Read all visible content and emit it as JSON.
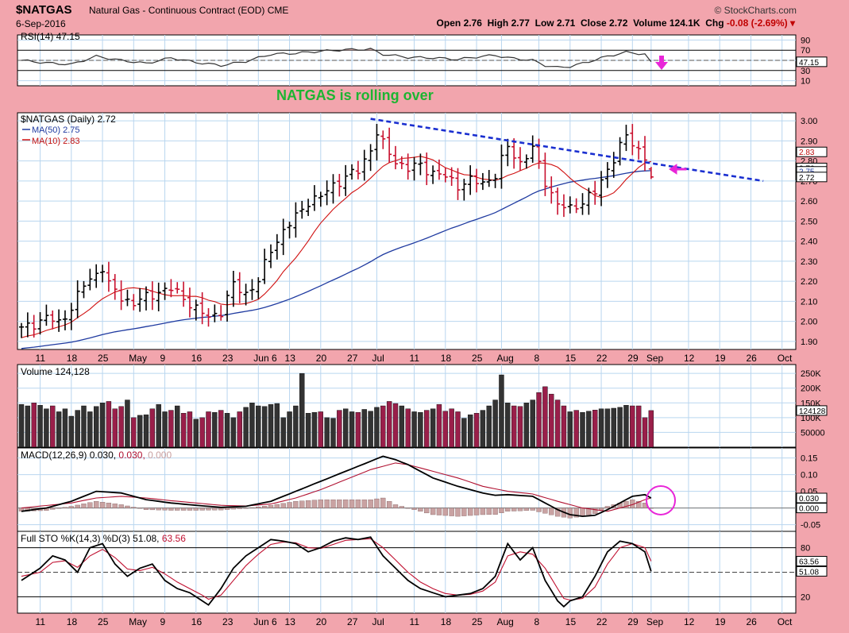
{
  "header": {
    "symbol": "$NATGAS",
    "description": "Natural Gas - Continuous Contract (EOD) CME",
    "date": "6-Sep-2016",
    "brand": "© StockCharts.com",
    "open_label": "Open",
    "open": "2.76",
    "high_label": "High",
    "high": "2.77",
    "low_label": "Low",
    "low": "2.71",
    "close_label": "Close",
    "close": "2.72",
    "volume_label": "Volume",
    "volume": "124.1K",
    "chg_label": "Chg",
    "chg": "-0.08 (-2.69%)"
  },
  "colors": {
    "background": "#f2a5ad",
    "panel": "#ffffff",
    "grid": "#b9d6ef",
    "price_up": "#000000",
    "price_down": "#c8102e",
    "ma50": "#1f3aa0",
    "ma10": "#d01010",
    "trendline": "#1a2fd0",
    "annotation": "#1db532",
    "arrow": "#e826d8",
    "vol_dark": "#333333",
    "vol_red": "#9a1f4a",
    "hist": "#c9a2a2"
  },
  "annotation_text": "NATGAS is rolling over",
  "x_axis": {
    "labels": [
      {
        "i": 3,
        "t": "11"
      },
      {
        "i": 8,
        "t": "18"
      },
      {
        "i": 13,
        "t": "25"
      },
      {
        "i": 18,
        "t": "May"
      },
      {
        "i": 23,
        "t": "9"
      },
      {
        "i": 28,
        "t": "16"
      },
      {
        "i": 33,
        "t": "23"
      },
      {
        "i": 38,
        "t": "Jun 6"
      },
      {
        "i": 43,
        "t": "13"
      },
      {
        "i": 48,
        "t": "20"
      },
      {
        "i": 53,
        "t": "27"
      },
      {
        "i": 57,
        "t": "Jul"
      },
      {
        "i": 63,
        "t": "11"
      },
      {
        "i": 68,
        "t": "18"
      },
      {
        "i": 73,
        "t": "25"
      },
      {
        "i": 77,
        "t": "Aug"
      },
      {
        "i": 83,
        "t": "8"
      },
      {
        "i": 88,
        "t": "15"
      },
      {
        "i": 93,
        "t": "22"
      },
      {
        "i": 98,
        "t": "29"
      },
      {
        "i": 101,
        "t": "Sep"
      },
      {
        "i": 107,
        "t": "12"
      },
      {
        "i": 112,
        "t": "19"
      },
      {
        "i": 117,
        "t": "26"
      },
      {
        "i": 122,
        "t": "Oct"
      }
    ]
  },
  "chart_data": [
    {
      "type": "line",
      "panel": "rsi",
      "legend": "RSI(14) 47.15",
      "current_tag": "47.15",
      "ylim": [
        0,
        100
      ],
      "ticks": [
        "90",
        "70",
        "50",
        "30",
        "10"
      ],
      "levels": [
        70,
        30
      ],
      "knots": [
        [
          0,
          50
        ],
        [
          4,
          45
        ],
        [
          8,
          42
        ],
        [
          12,
          58
        ],
        [
          16,
          50
        ],
        [
          20,
          44
        ],
        [
          24,
          55
        ],
        [
          28,
          46
        ],
        [
          32,
          40
        ],
        [
          36,
          48
        ],
        [
          40,
          62
        ],
        [
          44,
          64
        ],
        [
          48,
          68
        ],
        [
          52,
          71
        ],
        [
          56,
          72
        ],
        [
          58,
          62
        ],
        [
          62,
          56
        ],
        [
          66,
          55
        ],
        [
          70,
          52
        ],
        [
          74,
          58
        ],
        [
          76,
          60
        ],
        [
          78,
          55
        ],
        [
          82,
          50
        ],
        [
          84,
          40
        ],
        [
          86,
          36
        ],
        [
          88,
          38
        ],
        [
          90,
          44
        ],
        [
          94,
          58
        ],
        [
          97,
          66
        ],
        [
          100,
          62
        ],
        [
          101,
          47.15
        ]
      ],
      "overbought_fill_from": 40,
      "overbought_fill_to": 58
    },
    {
      "type": "ohlc",
      "panel": "price",
      "title": "$NATGAS (Daily) 2.72",
      "legend": [
        "MA(50) 2.75",
        "MA(10) 2.83"
      ],
      "value_tags": [
        "2.83",
        "2.76",
        "2.75",
        "2.72"
      ],
      "ylim": [
        1.86,
        3.04
      ],
      "ticks": [
        "3.00",
        "2.90",
        "2.80",
        "2.70",
        "2.60",
        "2.50",
        "2.40",
        "2.30",
        "2.20",
        "2.10",
        "2.00",
        "1.90"
      ],
      "close_knots": [
        [
          0,
          1.96
        ],
        [
          2,
          1.99
        ],
        [
          4,
          2.02
        ],
        [
          6,
          1.99
        ],
        [
          8,
          2.07
        ],
        [
          10,
          2.18
        ],
        [
          12,
          2.24
        ],
        [
          13,
          2.27
        ],
        [
          14,
          2.18
        ],
        [
          16,
          2.12
        ],
        [
          18,
          2.09
        ],
        [
          20,
          2.12
        ],
        [
          22,
          2.15
        ],
        [
          24,
          2.16
        ],
        [
          26,
          2.12
        ],
        [
          28,
          2.06
        ],
        [
          30,
          2.02
        ],
        [
          32,
          2.05
        ],
        [
          34,
          2.18
        ],
        [
          36,
          2.14
        ],
        [
          38,
          2.2
        ],
        [
          40,
          2.36
        ],
        [
          42,
          2.45
        ],
        [
          44,
          2.52
        ],
        [
          46,
          2.6
        ],
        [
          48,
          2.62
        ],
        [
          50,
          2.68
        ],
        [
          52,
          2.72
        ],
        [
          54,
          2.75
        ],
        [
          56,
          2.86
        ],
        [
          57,
          2.94
        ],
        [
          58,
          2.88
        ],
        [
          60,
          2.8
        ],
        [
          62,
          2.76
        ],
        [
          64,
          2.78
        ],
        [
          66,
          2.74
        ],
        [
          68,
          2.72
        ],
        [
          70,
          2.68
        ],
        [
          72,
          2.7
        ],
        [
          74,
          2.69
        ],
        [
          76,
          2.73
        ],
        [
          78,
          2.87
        ],
        [
          80,
          2.79
        ],
        [
          82,
          2.86
        ],
        [
          84,
          2.7
        ],
        [
          86,
          2.58
        ],
        [
          88,
          2.56
        ],
        [
          90,
          2.6
        ],
        [
          92,
          2.64
        ],
        [
          94,
          2.76
        ],
        [
          96,
          2.87
        ],
        [
          97,
          2.92
        ],
        [
          98,
          2.89
        ],
        [
          100,
          2.82
        ],
        [
          101,
          2.72
        ]
      ],
      "open": 2.76,
      "high": 2.77,
      "low": 2.71,
      "close": 2.72,
      "trendline": [
        [
          56,
          3.01
        ],
        [
          119,
          2.7
        ]
      ],
      "annotation": "NATGAS is rolling over"
    },
    {
      "type": "bar",
      "panel": "volume",
      "legend": "Volume 124,128",
      "current_tag": "124128",
      "ylim": [
        0,
        280000
      ],
      "ticks": [
        "250K",
        "200K",
        "150K",
        "100K",
        "50000"
      ],
      "tick_values": [
        250000,
        200000,
        150000,
        100000,
        50000
      ],
      "values": [
        145000,
        140000,
        150000,
        142000,
        130000,
        140000,
        120000,
        130000,
        105000,
        125000,
        140000,
        120000,
        138000,
        150000,
        155000,
        130000,
        138000,
        160000,
        100000,
        108000,
        110000,
        130000,
        145000,
        120000,
        125000,
        140000,
        115000,
        120000,
        95000,
        100000,
        120000,
        118000,
        125000,
        115000,
        100000,
        120000,
        135000,
        150000,
        140000,
        138000,
        145000,
        148000,
        100000,
        120000,
        140000,
        250000,
        115000,
        118000,
        120000,
        100000,
        98000,
        125000,
        130000,
        120000,
        118000,
        128000,
        122000,
        135000,
        140000,
        155000,
        148000,
        140000,
        130000,
        120000,
        118000,
        125000,
        130000,
        145000,
        122000,
        130000,
        120000,
        98000,
        110000,
        115000,
        125000,
        140000,
        160000,
        245000,
        150000,
        140000,
        138000,
        150000,
        160000,
        185000,
        205000,
        180000,
        160000,
        140000,
        120000,
        125000,
        118000,
        122000,
        126000,
        130000,
        130000,
        132000,
        135000,
        142000,
        140000,
        140000,
        100000,
        124128
      ]
    },
    {
      "type": "line",
      "panel": "macd",
      "legend_parts": [
        "MACD(12,26,9)",
        "0.030,",
        "0.030,",
        "0.000"
      ],
      "value_tags": [
        "0.030",
        "0.000"
      ],
      "ylim": [
        -0.07,
        0.18
      ],
      "ticks": [
        "0.15",
        "0.10",
        "0.05",
        "0.00",
        "-0.05"
      ],
      "tick_values": [
        0.15,
        0.1,
        0.05,
        0.0,
        -0.05
      ],
      "macd_knots": [
        [
          0,
          -0.01
        ],
        [
          4,
          0.0
        ],
        [
          8,
          0.02
        ],
        [
          12,
          0.05
        ],
        [
          16,
          0.045
        ],
        [
          20,
          0.025
        ],
        [
          24,
          0.015
        ],
        [
          28,
          0.008
        ],
        [
          32,
          0.002
        ],
        [
          36,
          0.005
        ],
        [
          40,
          0.02
        ],
        [
          44,
          0.05
        ],
        [
          48,
          0.08
        ],
        [
          52,
          0.11
        ],
        [
          56,
          0.14
        ],
        [
          58,
          0.155
        ],
        [
          60,
          0.145
        ],
        [
          62,
          0.13
        ],
        [
          64,
          0.11
        ],
        [
          66,
          0.09
        ],
        [
          70,
          0.065
        ],
        [
          74,
          0.045
        ],
        [
          76,
          0.038
        ],
        [
          78,
          0.04
        ],
        [
          82,
          0.035
        ],
        [
          84,
          0.015
        ],
        [
          86,
          -0.005
        ],
        [
          88,
          -0.02
        ],
        [
          90,
          -0.025
        ],
        [
          92,
          -0.022
        ],
        [
          94,
          -0.005
        ],
        [
          96,
          0.015
        ],
        [
          98,
          0.035
        ],
        [
          100,
          0.04
        ],
        [
          101,
          0.03
        ]
      ],
      "signal_knots": [
        [
          0,
          0.0
        ],
        [
          8,
          0.015
        ],
        [
          12,
          0.03
        ],
        [
          16,
          0.035
        ],
        [
          20,
          0.03
        ],
        [
          24,
          0.022
        ],
        [
          28,
          0.015
        ],
        [
          32,
          0.008
        ],
        [
          36,
          0.006
        ],
        [
          40,
          0.012
        ],
        [
          44,
          0.03
        ],
        [
          48,
          0.055
        ],
        [
          52,
          0.085
        ],
        [
          56,
          0.115
        ],
        [
          60,
          0.135
        ],
        [
          62,
          0.13
        ],
        [
          66,
          0.11
        ],
        [
          70,
          0.09
        ],
        [
          74,
          0.065
        ],
        [
          78,
          0.05
        ],
        [
          82,
          0.042
        ],
        [
          86,
          0.02
        ],
        [
          90,
          0.0
        ],
        [
          94,
          -0.01
        ],
        [
          98,
          0.01
        ],
        [
          100,
          0.025
        ],
        [
          101,
          0.03
        ]
      ]
    },
    {
      "type": "line",
      "panel": "stochastic",
      "legend_parts": [
        "Full STO %K(14,3) %D(3)",
        "51.08,",
        "63.56"
      ],
      "value_tags": [
        "63.56",
        "51.08"
      ],
      "ylim": [
        0,
        100
      ],
      "ticks": [
        "80",
        "50",
        "20"
      ],
      "levels": [
        80,
        20
      ],
      "mid": 50,
      "k_knots": [
        [
          0,
          40
        ],
        [
          3,
          55
        ],
        [
          5,
          70
        ],
        [
          7,
          65
        ],
        [
          9,
          50
        ],
        [
          11,
          80
        ],
        [
          13,
          85
        ],
        [
          15,
          60
        ],
        [
          17,
          45
        ],
        [
          19,
          55
        ],
        [
          21,
          60
        ],
        [
          23,
          40
        ],
        [
          25,
          30
        ],
        [
          27,
          25
        ],
        [
          29,
          15
        ],
        [
          30,
          10
        ],
        [
          32,
          30
        ],
        [
          34,
          55
        ],
        [
          36,
          70
        ],
        [
          38,
          80
        ],
        [
          40,
          90
        ],
        [
          42,
          88
        ],
        [
          44,
          85
        ],
        [
          46,
          75
        ],
        [
          48,
          80
        ],
        [
          50,
          88
        ],
        [
          52,
          92
        ],
        [
          54,
          90
        ],
        [
          56,
          93
        ],
        [
          58,
          70
        ],
        [
          60,
          55
        ],
        [
          62,
          40
        ],
        [
          64,
          30
        ],
        [
          66,
          25
        ],
        [
          68,
          20
        ],
        [
          70,
          22
        ],
        [
          72,
          24
        ],
        [
          74,
          30
        ],
        [
          76,
          45
        ],
        [
          78,
          85
        ],
        [
          80,
          65
        ],
        [
          82,
          80
        ],
        [
          84,
          40
        ],
        [
          86,
          15
        ],
        [
          87,
          8
        ],
        [
          88,
          15
        ],
        [
          90,
          20
        ],
        [
          92,
          45
        ],
        [
          94,
          75
        ],
        [
          96,
          88
        ],
        [
          98,
          85
        ],
        [
          100,
          75
        ],
        [
          101,
          51.08
        ]
      ],
      "d_knots": [
        [
          0,
          45
        ],
        [
          3,
          50
        ],
        [
          5,
          62
        ],
        [
          7,
          64
        ],
        [
          9,
          56
        ],
        [
          11,
          70
        ],
        [
          13,
          78
        ],
        [
          15,
          68
        ],
        [
          17,
          54
        ],
        [
          19,
          52
        ],
        [
          21,
          56
        ],
        [
          23,
          48
        ],
        [
          25,
          38
        ],
        [
          27,
          30
        ],
        [
          29,
          22
        ],
        [
          30,
          17
        ],
        [
          32,
          22
        ],
        [
          34,
          40
        ],
        [
          36,
          58
        ],
        [
          38,
          72
        ],
        [
          40,
          84
        ],
        [
          42,
          87
        ],
        [
          44,
          86
        ],
        [
          46,
          80
        ],
        [
          48,
          79
        ],
        [
          50,
          84
        ],
        [
          52,
          89
        ],
        [
          54,
          90
        ],
        [
          56,
          91
        ],
        [
          58,
          80
        ],
        [
          60,
          65
        ],
        [
          62,
          50
        ],
        [
          64,
          38
        ],
        [
          66,
          30
        ],
        [
          68,
          24
        ],
        [
          70,
          22
        ],
        [
          72,
          23
        ],
        [
          74,
          27
        ],
        [
          76,
          38
        ],
        [
          78,
          70
        ],
        [
          80,
          75
        ],
        [
          82,
          72
        ],
        [
          84,
          55
        ],
        [
          86,
          30
        ],
        [
          87,
          18
        ],
        [
          88,
          16
        ],
        [
          90,
          18
        ],
        [
          92,
          32
        ],
        [
          94,
          60
        ],
        [
          96,
          80
        ],
        [
          98,
          85
        ],
        [
          100,
          80
        ],
        [
          101,
          63.56
        ]
      ]
    }
  ]
}
